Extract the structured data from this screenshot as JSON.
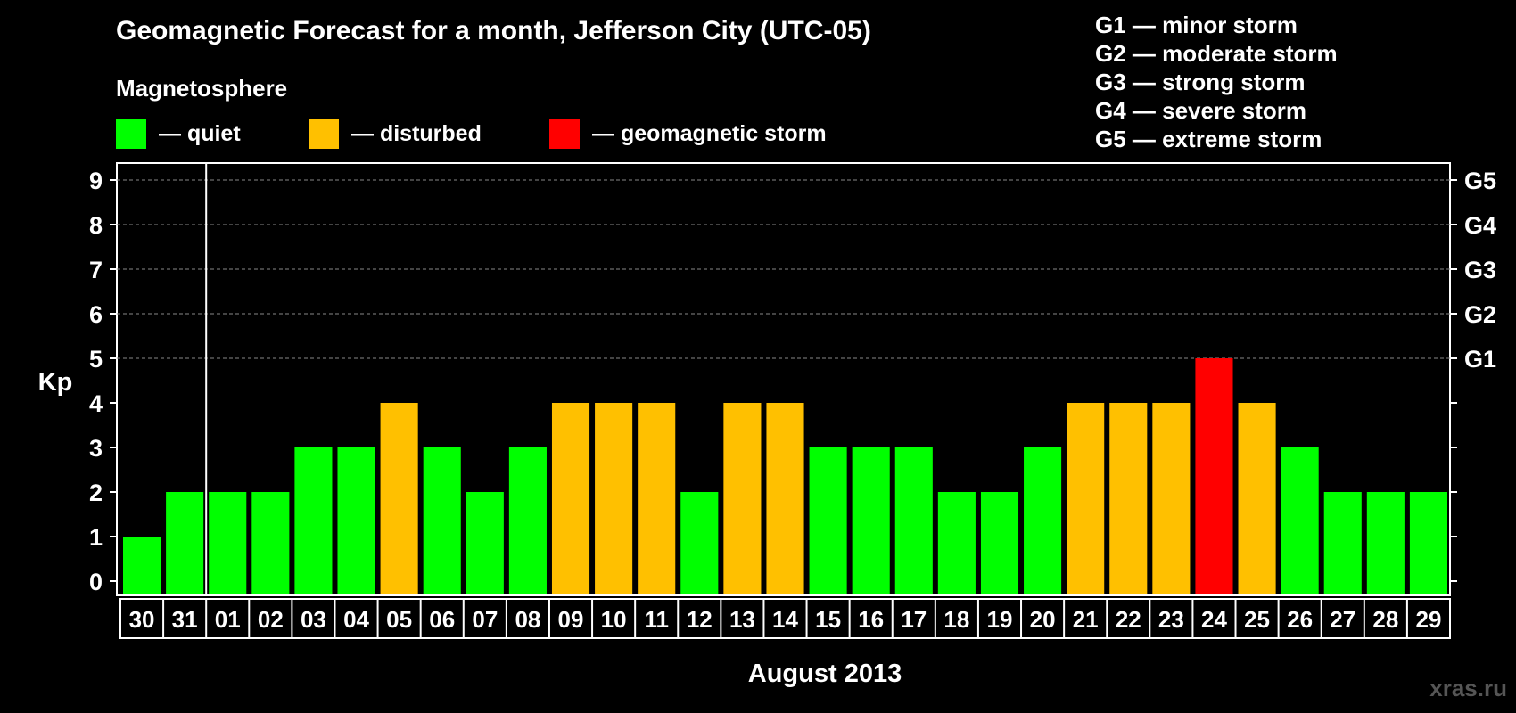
{
  "header": {
    "title": "Geomagnetic Forecast for a month, Jefferson City (UTC-05)",
    "section_label": "Magnetosphere"
  },
  "legend": [
    {
      "label": "— quiet",
      "color": "#00ff00"
    },
    {
      "label": "— disturbed",
      "color": "#ffc000"
    },
    {
      "label": "— geomagnetic storm",
      "color": "#ff0000"
    }
  ],
  "storm_levels": [
    "G1 — minor storm",
    "G2 — moderate storm",
    "G3 — strong storm",
    "G4 — severe storm",
    "G5 — extreme storm"
  ],
  "watermark": "xras.ru",
  "colors": {
    "quiet": "#00ff00",
    "disturbed": "#ffc000",
    "storm": "#ff0000",
    "background": "#000000",
    "axis": "#ffffff"
  },
  "chart_data": {
    "type": "bar",
    "title": "Geomagnetic Forecast for a month, Jefferson City (UTC-05)",
    "xlabel": "August 2013",
    "ylabel": "Kp",
    "ylim": [
      0,
      9
    ],
    "yticks": [
      "0",
      "1",
      "2",
      "3",
      "4",
      "5",
      "6",
      "7",
      "8",
      "9"
    ],
    "right_axis": [
      {
        "kp": 5,
        "label": "G1"
      },
      {
        "kp": 6,
        "label": "G2"
      },
      {
        "kp": 7,
        "label": "G3"
      },
      {
        "kp": 8,
        "label": "G4"
      },
      {
        "kp": 9,
        "label": "G5"
      }
    ],
    "categories": [
      "30",
      "31",
      "01",
      "02",
      "03",
      "04",
      "05",
      "06",
      "07",
      "08",
      "09",
      "10",
      "11",
      "12",
      "13",
      "14",
      "15",
      "16",
      "17",
      "18",
      "19",
      "20",
      "21",
      "22",
      "23",
      "24",
      "25",
      "26",
      "27",
      "28",
      "29"
    ],
    "values": [
      1,
      2,
      2,
      2,
      3,
      3,
      4,
      3,
      2,
      3,
      4,
      4,
      4,
      2,
      4,
      4,
      3,
      3,
      3,
      2,
      2,
      3,
      4,
      4,
      4,
      5,
      4,
      3,
      2,
      2,
      2
    ],
    "grid": "dashed at Kp 5–9",
    "month_separator_after": "31"
  }
}
